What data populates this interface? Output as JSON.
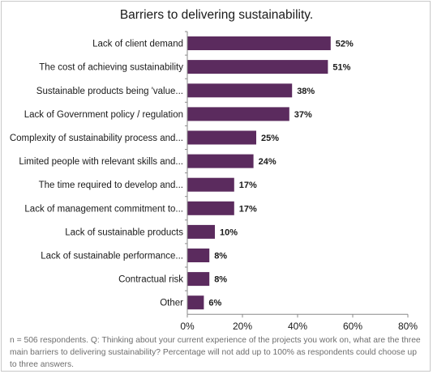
{
  "chart_data": {
    "type": "bar",
    "orientation": "horizontal",
    "title": "Barriers to delivering sustainability.",
    "categories": [
      "Lack of client demand",
      "The cost of achieving sustainability",
      "Sustainable products being 'value...",
      "Lack of Government policy / regulation",
      "Complexity of sustainability process and...",
      "Limited people with relevant skills and...",
      "The time required to develop and...",
      "Lack of management commitment to...",
      "Lack of sustainable products",
      "Lack of sustainable performance...",
      "Contractual risk",
      "Other"
    ],
    "values": [
      52,
      51,
      38,
      37,
      25,
      24,
      17,
      17,
      10,
      8,
      8,
      6
    ],
    "value_labels": [
      "52%",
      "51%",
      "38%",
      "37%",
      "25%",
      "24%",
      "17%",
      "17%",
      "10%",
      "8%",
      "8%",
      "6%"
    ],
    "xlim": [
      0,
      80
    ],
    "x_ticks": [
      0,
      20,
      40,
      60,
      80
    ],
    "x_tick_labels": [
      "0%",
      "20%",
      "40%",
      "60%",
      "80%"
    ],
    "xlabel": "",
    "ylabel": "",
    "grid": false,
    "legend": "none",
    "bar_color": "#5b2b5e"
  },
  "footnote": "n = 506 respondents. Q: Thinking about your current experience of the projects you work on, what are the three main barriers to delivering sustainability? Percentage will not add up to 100% as respondents could choose up to three answers."
}
